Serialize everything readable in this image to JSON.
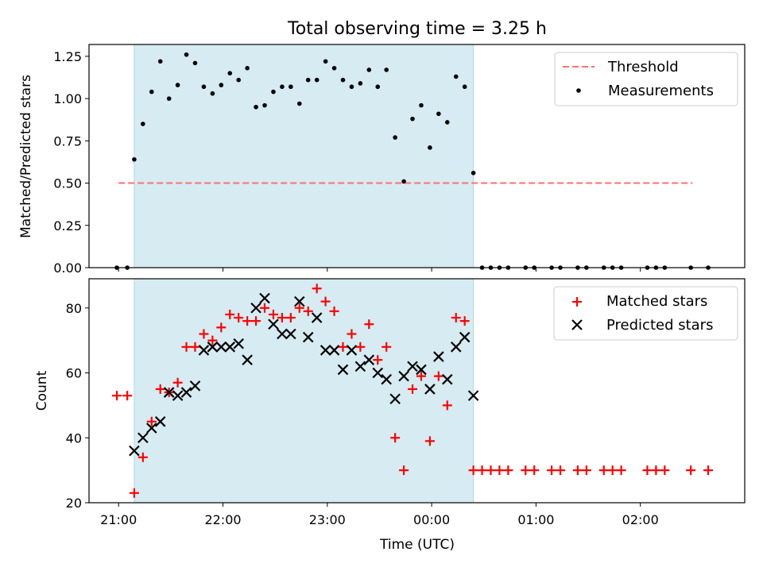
{
  "title": "Total observing time = 3.25 h",
  "xlabel": "Time (UTC)",
  "x_ticks": [
    "21:00",
    "22:00",
    "23:00",
    "00:00",
    "01:00",
    "02:00"
  ],
  "colors": {
    "shade": "#add8e6",
    "threshold": "#ff6f6f",
    "matched": "#ff0000",
    "predicted": "#000000",
    "measure": "#000000"
  },
  "chart_data": [
    {
      "type": "scatter",
      "ylabel": "Matched/Predicted stars",
      "ylim": [
        0,
        1.32
      ],
      "xlim": [
        "20:43",
        "03:00"
      ],
      "y_ticks": [
        "0.00",
        "0.25",
        "0.50",
        "0.75",
        "1.00",
        "1.25"
      ],
      "shaded_interval": [
        "21:09",
        "00:24"
      ],
      "legend_position": "upper right",
      "threshold": {
        "name": "Threshold",
        "y": 0.5,
        "x_range": [
          "21:00",
          "02:30"
        ]
      },
      "series": [
        {
          "name": "Measurements",
          "x": [
            "20:59",
            "21:05",
            "21:09",
            "21:14",
            "21:19",
            "21:24",
            "21:29",
            "21:34",
            "21:39",
            "21:44",
            "21:49",
            "21:54",
            "21:59",
            "22:04",
            "22:09",
            "22:14",
            "22:19",
            "22:24",
            "22:29",
            "22:34",
            "22:39",
            "22:44",
            "22:49",
            "22:54",
            "22:59",
            "23:04",
            "23:09",
            "23:14",
            "23:19",
            "23:24",
            "23:29",
            "23:34",
            "23:39",
            "23:44",
            "23:49",
            "23:54",
            "23:59",
            "00:04",
            "00:09",
            "00:14",
            "00:19",
            "00:24",
            "00:29",
            "00:34",
            "00:39",
            "00:44",
            "00:54",
            "00:59",
            "01:09",
            "01:14",
            "01:24",
            "01:29",
            "01:39",
            "01:44",
            "01:49",
            "02:04",
            "02:09",
            "02:14",
            "02:29",
            "02:39"
          ],
          "y": [
            0,
            0,
            0.64,
            0.85,
            1.04,
            1.22,
            1.0,
            1.08,
            1.26,
            1.21,
            1.07,
            1.03,
            1.08,
            1.15,
            1.11,
            1.18,
            0.95,
            0.96,
            1.04,
            1.07,
            1.07,
            0.97,
            1.11,
            1.11,
            1.22,
            1.18,
            1.11,
            1.07,
            1.09,
            1.17,
            1.07,
            1.17,
            0.77,
            0.51,
            0.88,
            0.96,
            0.71,
            0.91,
            0.86,
            1.13,
            1.07,
            0.56,
            0,
            0,
            0,
            0,
            0,
            0,
            0,
            0,
            0,
            0,
            0,
            0,
            0,
            0,
            0,
            0,
            0,
            0
          ]
        }
      ]
    },
    {
      "type": "scatter",
      "ylabel": "Count",
      "ylim": [
        20,
        89
      ],
      "xlim": [
        "20:43",
        "03:00"
      ],
      "y_ticks": [
        "20",
        "40",
        "60",
        "80"
      ],
      "shaded_interval": [
        "21:09",
        "00:24"
      ],
      "legend_position": "upper right",
      "series": [
        {
          "name": "Matched stars",
          "marker": "plus",
          "x": [
            "20:59",
            "21:05",
            "21:09",
            "21:14",
            "21:19",
            "21:24",
            "21:29",
            "21:34",
            "21:39",
            "21:44",
            "21:49",
            "21:54",
            "21:59",
            "22:04",
            "22:09",
            "22:14",
            "22:19",
            "22:24",
            "22:29",
            "22:34",
            "22:39",
            "22:44",
            "22:49",
            "22:54",
            "22:59",
            "23:04",
            "23:09",
            "23:14",
            "23:19",
            "23:24",
            "23:29",
            "23:34",
            "23:39",
            "23:44",
            "23:49",
            "23:54",
            "23:59",
            "00:04",
            "00:09",
            "00:14",
            "00:19",
            "00:24",
            "00:29",
            "00:34",
            "00:39",
            "00:44",
            "00:54",
            "00:59",
            "01:09",
            "01:14",
            "01:24",
            "01:29",
            "01:39",
            "01:44",
            "01:49",
            "02:04",
            "02:09",
            "02:14",
            "02:29",
            "02:39"
          ],
          "y": [
            53,
            53,
            23,
            34,
            45,
            55,
            54,
            57,
            68,
            68,
            72,
            70,
            74,
            78,
            77,
            76,
            76,
            80,
            78,
            77,
            77,
            80,
            79,
            86,
            82,
            79,
            68,
            72,
            68,
            75,
            64,
            68,
            40,
            30,
            55,
            59,
            39,
            59,
            50,
            77,
            76,
            30,
            30,
            30,
            30,
            30,
            30,
            30,
            30,
            30,
            30,
            30,
            30,
            30,
            30,
            30,
            30,
            30,
            30,
            30
          ]
        },
        {
          "name": "Predicted stars",
          "marker": "x",
          "x": [
            "21:09",
            "21:14",
            "21:19",
            "21:24",
            "21:29",
            "21:34",
            "21:39",
            "21:44",
            "21:49",
            "21:54",
            "21:59",
            "22:04",
            "22:09",
            "22:14",
            "22:19",
            "22:24",
            "22:29",
            "22:34",
            "22:39",
            "22:44",
            "22:49",
            "22:54",
            "22:59",
            "23:04",
            "23:09",
            "23:14",
            "23:19",
            "23:24",
            "23:29",
            "23:34",
            "23:39",
            "23:44",
            "23:49",
            "23:54",
            "23:59",
            "00:04",
            "00:09",
            "00:14",
            "00:19",
            "00:24"
          ],
          "y": [
            36,
            40,
            43,
            45,
            54,
            53,
            54,
            56,
            67,
            68,
            68,
            68,
            69,
            64,
            80,
            83,
            75,
            72,
            72,
            82,
            71,
            77,
            67,
            67,
            61,
            67,
            62,
            64,
            60,
            58,
            52,
            59,
            62,
            61,
            55,
            65,
            58,
            68,
            71,
            53
          ]
        }
      ]
    }
  ]
}
